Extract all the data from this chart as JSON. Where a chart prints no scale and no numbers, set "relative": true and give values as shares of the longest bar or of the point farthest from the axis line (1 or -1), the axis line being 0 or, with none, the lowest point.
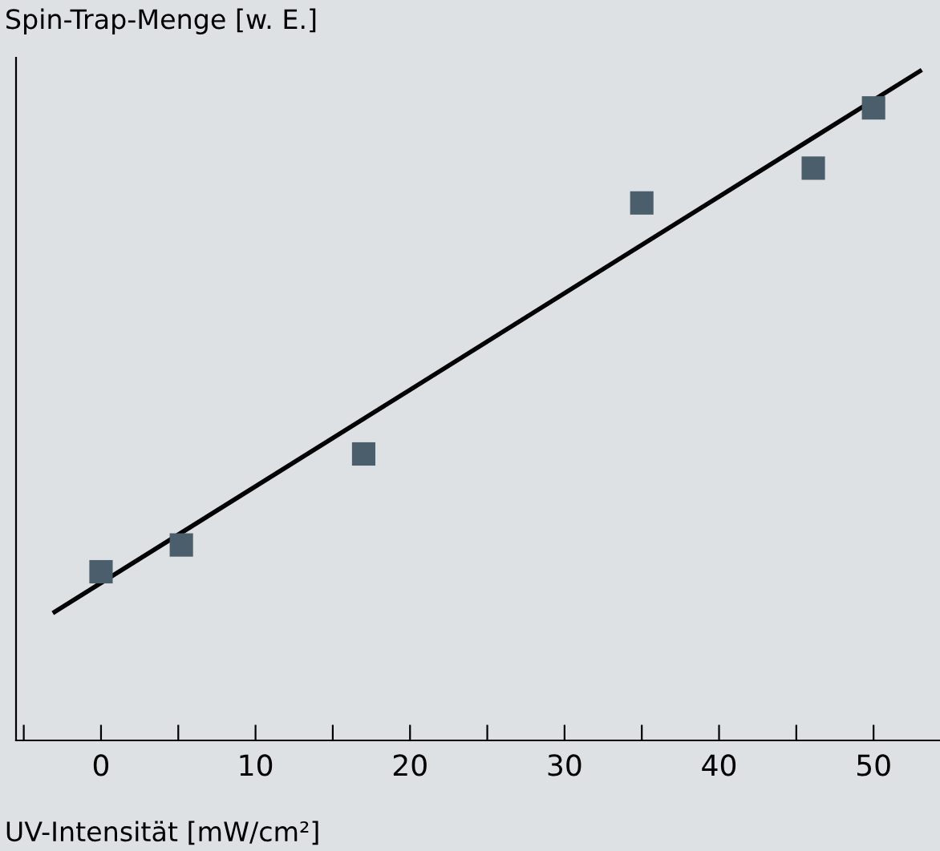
{
  "chart_data": {
    "type": "scatter",
    "relative": true,
    "xlabel": "UV-Intensität [mW/cm²]",
    "ylabel": "Spin-Trap-Menge [w. E.]",
    "xlim": [
      -5.5,
      54.3
    ],
    "xticks": [
      {
        "value": -5,
        "label": null
      },
      0,
      {
        "value": 5,
        "label": null
      },
      10,
      {
        "value": 15,
        "label": null
      },
      20,
      {
        "value": 25,
        "label": null
      },
      30,
      {
        "value": 35,
        "label": null
      },
      40,
      {
        "value": 45,
        "label": null
      },
      50
    ],
    "grid": false,
    "legend": false,
    "series": [
      {
        "marker": "square",
        "color": "#4a5f6b",
        "x": [
          0.0,
          5.2,
          17.0,
          35.0,
          46.1,
          50.0
        ],
        "values": [
          0.252,
          0.292,
          0.428,
          0.803,
          0.855,
          0.945
        ]
      },
      {
        "type": "line",
        "marker": "none",
        "color": "#000000",
        "x": [
          -3,
          53
        ],
        "values": [
          0.192,
          1.0
        ]
      }
    ]
  }
}
